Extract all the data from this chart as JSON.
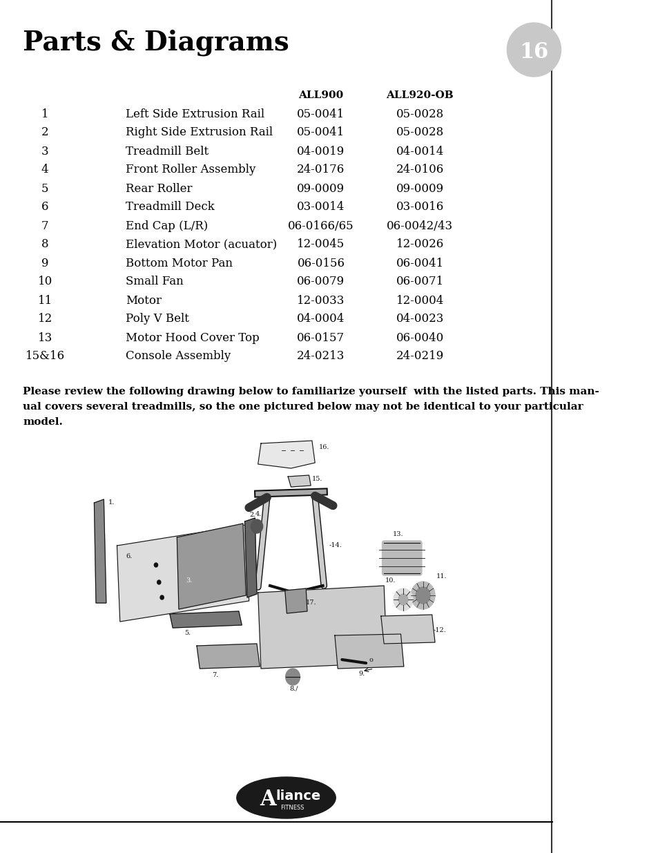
{
  "title": "Parts & Diagrams",
  "page_number": "16",
  "col_headers": [
    "ALL900",
    "ALL920-OB"
  ],
  "parts": [
    {
      "num": "1",
      "name": "Left Side Extrusion Rail",
      "all900": "05-0041",
      "all920ob": "05-0028"
    },
    {
      "num": "2",
      "name": "Right Side Extrusion Rail",
      "all900": "05-0041",
      "all920ob": "05-0028"
    },
    {
      "num": "3",
      "name": "Treadmill Belt",
      "all900": "04-0019",
      "all920ob": "04-0014"
    },
    {
      "num": "4",
      "name": "Front Roller Assembly",
      "all900": "24-0176",
      "all920ob": "24-0106"
    },
    {
      "num": "5",
      "name": "Rear Roller",
      "all900": "09-0009",
      "all920ob": "09-0009"
    },
    {
      "num": "6",
      "name": "Treadmill Deck",
      "all900": "03-0014",
      "all920ob": "03-0016"
    },
    {
      "num": "7",
      "name": "End Cap (L/R)",
      "all900": "06-0166/65",
      "all920ob": "06-0042/43"
    },
    {
      "num": "8",
      "name": "Elevation Motor (acuator)",
      "all900": "12-0045",
      "all920ob": "12-0026"
    },
    {
      "num": "9",
      "name": "Bottom Motor Pan",
      "all900": "06-0156",
      "all920ob": "06-0041"
    },
    {
      "num": "10",
      "name": "Small Fan",
      "all900": "06-0079",
      "all920ob": "06-0071"
    },
    {
      "num": "11",
      "name": "Motor",
      "all900": "12-0033",
      "all920ob": "12-0004"
    },
    {
      "num": "12",
      "name": "Poly V Belt",
      "all900": "04-0004",
      "all920ob": "04-0023"
    },
    {
      "num": "13",
      "name": "Motor Hood Cover Top",
      "all900": "06-0157",
      "all920ob": "06-0040"
    },
    {
      "num": "15&16",
      "name": "Console Assembly",
      "all900": "24-0213",
      "all920ob": "24-0219"
    }
  ],
  "desc_line1": "Please review the following drawing below to familiarize yourself  with the listed parts. This man-",
  "desc_line2": "ual covers several treadmills, so the one pictured below may not be identical to your particular",
  "desc_line3": "model.",
  "bg_color": "#ffffff",
  "text_color": "#000000",
  "header_color": "#000000",
  "page_bg": "#c8c8c8",
  "right_line_color": "#333333",
  "bottom_line_color": "#000000"
}
